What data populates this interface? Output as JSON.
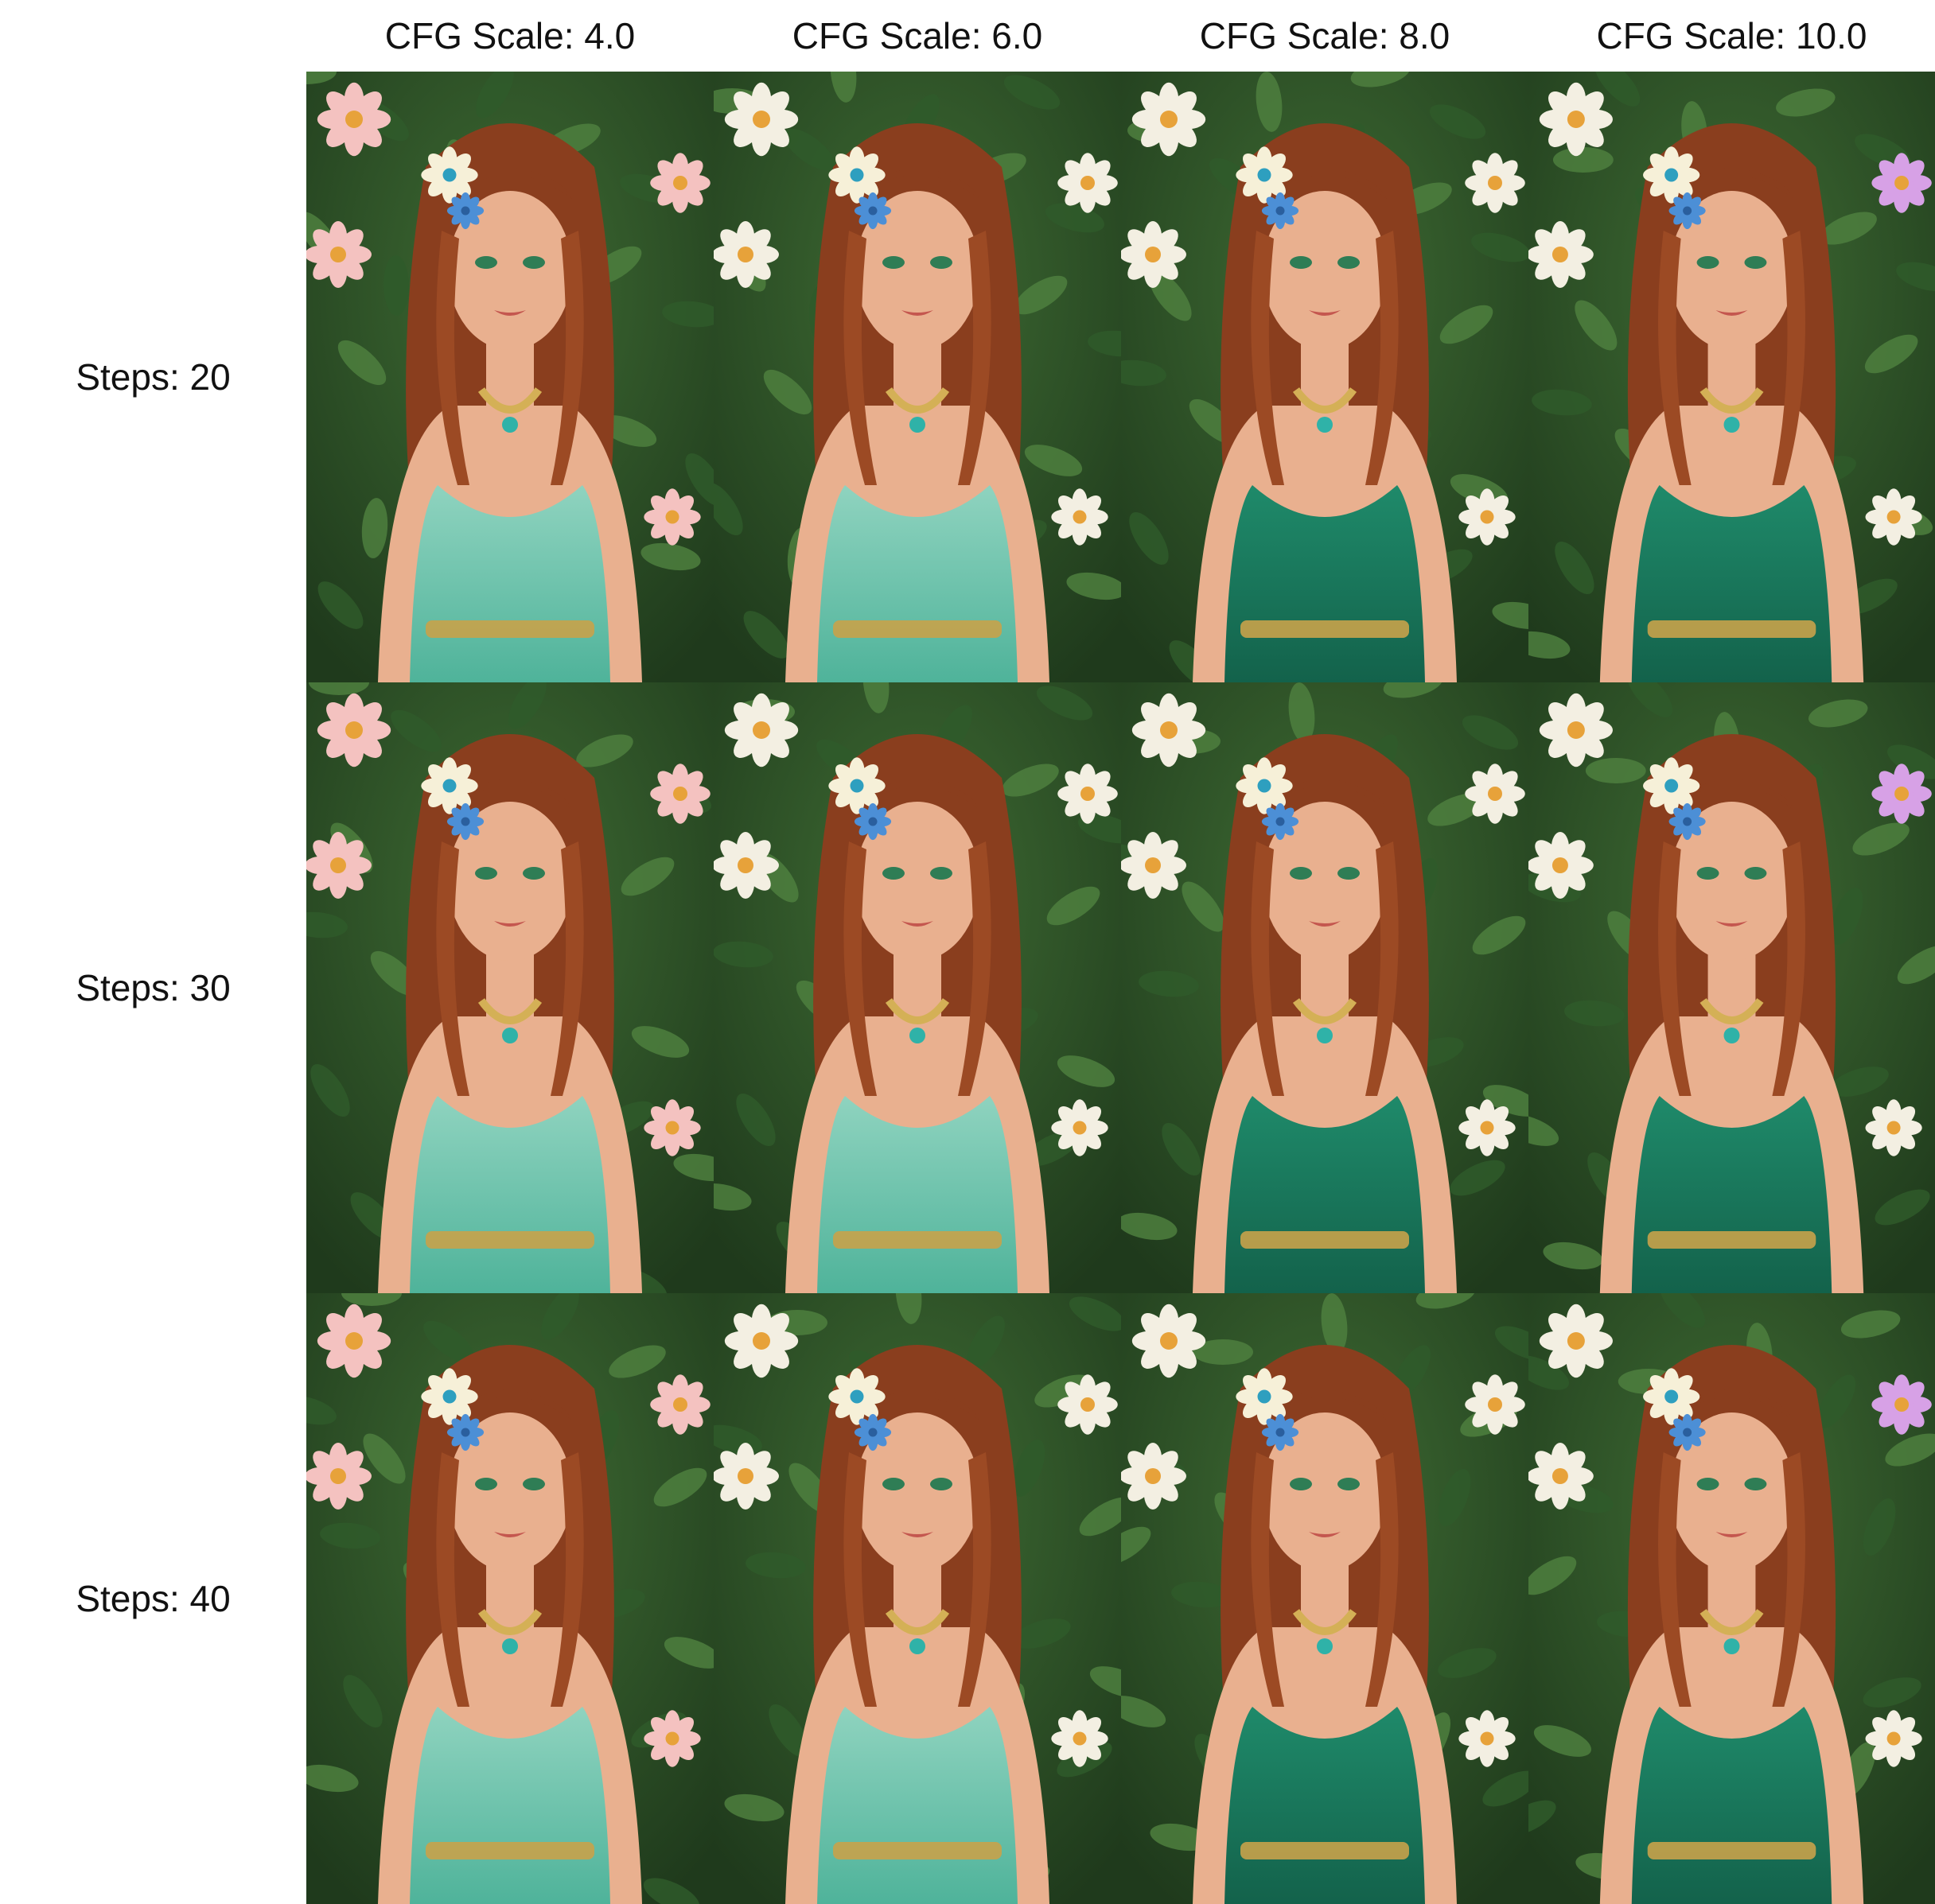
{
  "columns": [
    {
      "label": "CFG Scale: 4.0"
    },
    {
      "label": "CFG Scale: 6.0"
    },
    {
      "label": "CFG Scale: 8.0"
    },
    {
      "label": "CFG Scale: 10.0"
    }
  ],
  "rows": [
    {
      "label": "Steps: 20"
    },
    {
      "label": "Steps: 30"
    },
    {
      "label": "Steps: 40"
    }
  ],
  "image_subject": "portrait of a woman with long auburn wavy hair and flowers in her hair, wearing a green off-shoulder dress, in front of a flowering garden hedge",
  "colors": {
    "background": "#ffffff",
    "text": "#111111",
    "foliage_dark": "#1f3a1c",
    "foliage": "#3e6b33",
    "dress_light": "#8fd3bf",
    "dress_deep": "#1f8a6a",
    "hair": "#8a3e1e",
    "skin": "#e9b08f"
  }
}
